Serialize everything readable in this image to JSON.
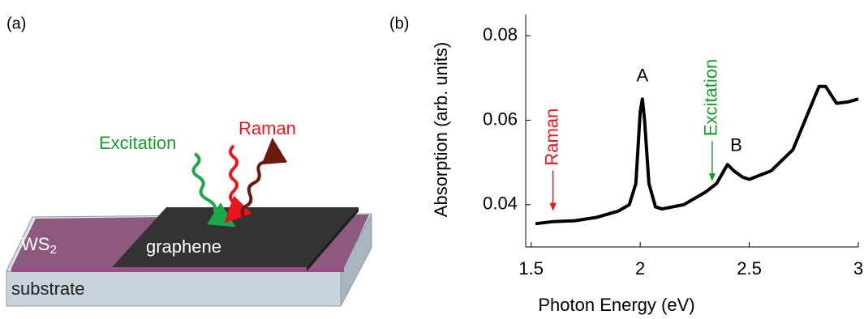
{
  "panel_a": {
    "label": "(a)",
    "excitation": "Excitation",
    "raman": "Raman",
    "ws2": {
      "main": "WS",
      "sub": "2"
    },
    "graphene": "graphene",
    "substrate": "substrate"
  },
  "chart_data": {
    "type": "line",
    "panel_label": "(b)",
    "x_label": "Photon Energy (eV)",
    "y_label": "Absorption (arb. units)",
    "xlim": [
      1.475,
      3
    ],
    "xticks": [
      1.5,
      2,
      2.5,
      3
    ],
    "ylim": [
      0.03,
      0.085
    ],
    "yticks": [
      0.04,
      0.06,
      0.08
    ],
    "series": [
      {
        "name": "Absorption",
        "color": "#000000",
        "x": [
          1.52,
          1.6,
          1.7,
          1.8,
          1.9,
          1.95,
          1.98,
          2.0,
          2.01,
          2.02,
          2.04,
          2.07,
          2.1,
          2.2,
          2.3,
          2.35,
          2.4,
          2.43,
          2.47,
          2.5,
          2.6,
          2.7,
          2.78,
          2.82,
          2.85,
          2.9,
          2.95,
          3.0
        ],
        "values": [
          0.0355,
          0.036,
          0.0362,
          0.037,
          0.0385,
          0.04,
          0.045,
          0.062,
          0.065,
          0.06,
          0.045,
          0.0395,
          0.039,
          0.04,
          0.043,
          0.045,
          0.0495,
          0.048,
          0.0465,
          0.046,
          0.048,
          0.053,
          0.063,
          0.068,
          0.068,
          0.064,
          0.0643,
          0.065
        ]
      }
    ],
    "annotations": [
      {
        "text": "A",
        "x": 2.01,
        "y": 0.068
      },
      {
        "text": "B",
        "x": 2.44,
        "y": 0.0515
      }
    ],
    "arrows": [
      {
        "text": "Raman",
        "x": 1.6,
        "y": 0.0385,
        "color": "#e8151b"
      },
      {
        "text": "Excitation",
        "x": 2.33,
        "y": 0.0455,
        "color": "#1a9a2a"
      }
    ]
  }
}
